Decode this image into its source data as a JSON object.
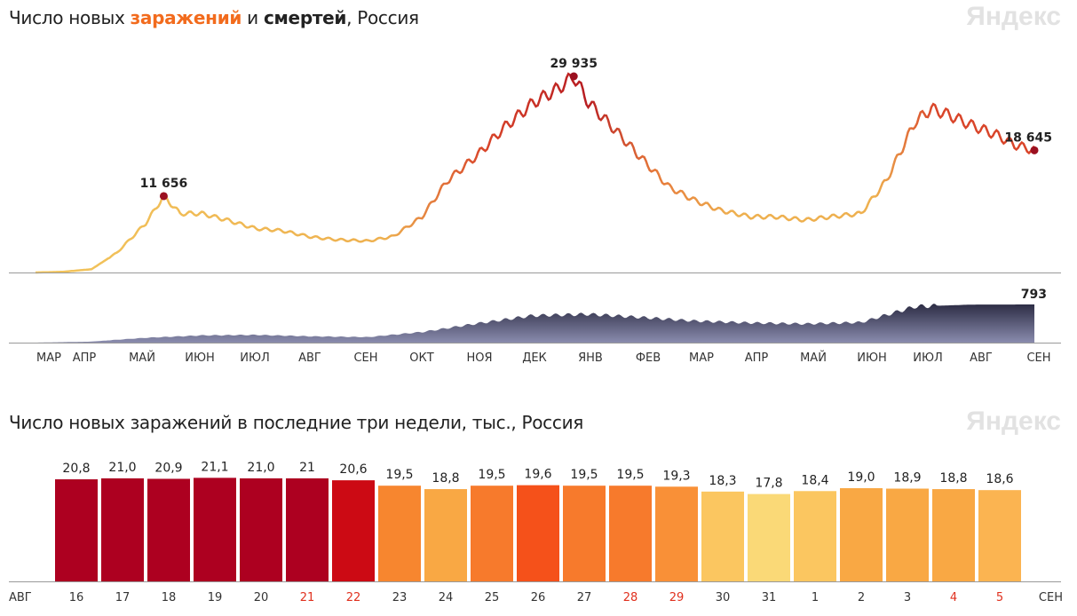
{
  "chart_data": [
    {
      "type": "line",
      "title_parts": [
        "Число новых ",
        "заражений",
        " и ",
        "смертей",
        ", Россия"
      ],
      "logo": "Яндекс",
      "series": [
        {
          "name": "Новые заражения",
          "unit": "cases",
          "x_day_from_2020_03_01": [
            0,
            15,
            31,
            45,
            61,
            71,
            80,
            92,
            106,
            122,
            136,
            153,
            167,
            184,
            198,
            214,
            228,
            245,
            259,
            276,
            289,
            298,
            306,
            320,
            337,
            351,
            365,
            379,
            396,
            410,
            426,
            440,
            457,
            471,
            487,
            496,
            506,
            518,
            532,
            542,
            553
          ],
          "values": [
            0,
            100,
            500,
            3000,
            7500,
            11656,
            9000,
            9000,
            8000,
            6700,
            6400,
            5400,
            5000,
            4800,
            5500,
            8500,
            14000,
            18000,
            22000,
            26000,
            28000,
            29935,
            26000,
            22000,
            17000,
            13000,
            11000,
            9500,
            8500,
            8500,
            8000,
            8500,
            9000,
            14000,
            23000,
            25000,
            24000,
            22500,
            21000,
            19500,
            18645
          ],
          "labels": [
            {
              "value": "11 656",
              "at_day": 71
            },
            {
              "value": "29 935",
              "at_day": 298
            },
            {
              "value": "18 645",
              "at_day": 553
            }
          ]
        },
        {
          "name": "Смерти",
          "unit": "deaths",
          "x_day_from_2020_03_01": [
            0,
            30,
            61,
            92,
            122,
            153,
            184,
            214,
            245,
            275,
            306,
            337,
            365,
            396,
            426,
            457,
            487,
            518,
            553
          ],
          "values": [
            0,
            20,
            100,
            150,
            160,
            130,
            115,
            220,
            400,
            560,
            590,
            520,
            450,
            410,
            390,
            420,
            750,
            790,
            793
          ],
          "labels": [
            {
              "value": "793",
              "at_day": 553
            }
          ]
        }
      ],
      "x_ticks": [
        "МАР",
        "АПР",
        "МАЙ",
        "ИЮН",
        "ИЮЛ",
        "АВГ",
        "СЕН",
        "ОКТ",
        "НОЯ",
        "ДЕК",
        "ЯНВ",
        "ФЕВ",
        "МАР",
        "АПР",
        "МАЙ",
        "ИЮН",
        "ИЮЛ",
        "АВГ",
        "СЕН"
      ]
    },
    {
      "type": "bar",
      "title": "Число новых заражений в последние три недели, тыс., Россия",
      "logo": "Яндекс",
      "xlabel_left": "АВГ",
      "xlabel_right": "СЕН",
      "categories": [
        "16",
        "17",
        "18",
        "19",
        "20",
        "21",
        "22",
        "23",
        "24",
        "25",
        "26",
        "27",
        "28",
        "29",
        "30",
        "31",
        "1",
        "2",
        "3",
        "4",
        "5"
      ],
      "values": [
        20.8,
        21.0,
        20.9,
        21.1,
        21.0,
        21,
        20.6,
        19.5,
        18.8,
        19.5,
        19.6,
        19.5,
        19.5,
        19.3,
        18.3,
        17.8,
        18.4,
        19.0,
        18.9,
        18.8,
        18.6
      ],
      "value_labels": [
        "20,8",
        "21,0",
        "20,9",
        "21,1",
        "21,0",
        "21",
        "20,6",
        "19,5",
        "18,8",
        "19,5",
        "19,6",
        "19,5",
        "19,5",
        "19,3",
        "18,3",
        "17,8",
        "18,4",
        "19,0",
        "18,9",
        "18,8",
        "18,6"
      ],
      "weekend": [
        false,
        false,
        false,
        false,
        false,
        true,
        true,
        false,
        false,
        false,
        false,
        false,
        true,
        true,
        false,
        false,
        false,
        false,
        false,
        true,
        true
      ],
      "colors": [
        "#ad0020",
        "#ad0020",
        "#ad0020",
        "#ad0020",
        "#ad0020",
        "#ad0020",
        "#cc0a14",
        "#f7862f",
        "#f9a844",
        "#f77a2c",
        "#f5511a",
        "#f77a2c",
        "#f77a2c",
        "#f99037",
        "#fbc660",
        "#fad977",
        "#fbc660",
        "#f9a844",
        "#f9a844",
        "#f9a844",
        "#fbb451"
      ]
    }
  ]
}
